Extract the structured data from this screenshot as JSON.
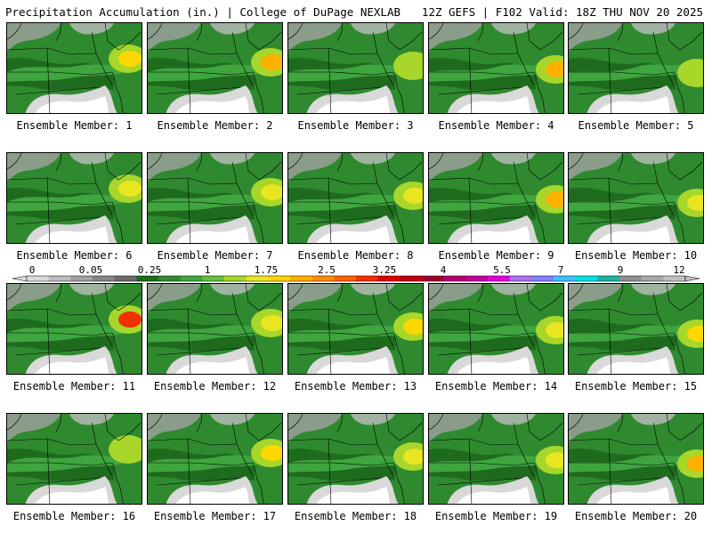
{
  "header": {
    "title_left": "Precipitation Accumulation (in.) | College of DuPage NEXLAB",
    "title_right": "12Z GEFS | F102 Valid: 18Z THU NOV 20 2025"
  },
  "colorbar": {
    "tick_labels": [
      "0",
      "0.05",
      "0.25",
      "1",
      "1.75",
      "2.5",
      "3.25",
      "4",
      "5.5",
      "7",
      "9",
      "12"
    ],
    "colors": [
      "#d9d9d9",
      "#bdbdbd",
      "#a1a1a1",
      "#858585",
      "#6b6b6b",
      "#1e6b1e",
      "#2f8a2f",
      "#3fa53f",
      "#62c03a",
      "#a8d62a",
      "#e8e620",
      "#ffd700",
      "#ffb000",
      "#ff8c00",
      "#ff6000",
      "#f03000",
      "#e00000",
      "#c00010",
      "#a00030",
      "#b00070",
      "#c000a0",
      "#e000e0",
      "#b070f0",
      "#8080ff",
      "#40c0ff",
      "#00e0e0",
      "#20b0a0",
      "#909090",
      "#a8a8a8",
      "#c0c0c0"
    ]
  },
  "panels": [
    {
      "label": "Ensemble Member: 1",
      "hotspot_color": "#ffd700"
    },
    {
      "label": "Ensemble Member: 2",
      "hotspot_color": "#ffb000"
    },
    {
      "label": "Ensemble Member: 3",
      "hotspot_color": "#a8d62a"
    },
    {
      "label": "Ensemble Member: 4",
      "hotspot_color": "#ffb000"
    },
    {
      "label": "Ensemble Member: 5",
      "hotspot_color": "#a8d62a"
    },
    {
      "label": "Ensemble Member: 6",
      "hotspot_color": "#e8e620"
    },
    {
      "label": "Ensemble Member: 7",
      "hotspot_color": "#e8e620"
    },
    {
      "label": "Ensemble Member: 8",
      "hotspot_color": "#e8e620"
    },
    {
      "label": "Ensemble Member: 9",
      "hotspot_color": "#ffb000"
    },
    {
      "label": "Ensemble Member: 10",
      "hotspot_color": "#e8e620"
    },
    {
      "label": "Ensemble Member: 11",
      "hotspot_color": "#f03000"
    },
    {
      "label": "Ensemble Member: 12",
      "hotspot_color": "#e8e620"
    },
    {
      "label": "Ensemble Member: 13",
      "hotspot_color": "#ffd700"
    },
    {
      "label": "Ensemble Member: 14",
      "hotspot_color": "#e8e620"
    },
    {
      "label": "Ensemble Member: 15",
      "hotspot_color": "#ffd700"
    },
    {
      "label": "Ensemble Member: 16",
      "hotspot_color": "#a8d62a"
    },
    {
      "label": "Ensemble Member: 17",
      "hotspot_color": "#ffd700"
    },
    {
      "label": "Ensemble Member: 18",
      "hotspot_color": "#e8e620"
    },
    {
      "label": "Ensemble Member: 19",
      "hotspot_color": "#e8e620"
    },
    {
      "label": "Ensemble Member: 20",
      "hotspot_color": "#ffb000"
    }
  ]
}
